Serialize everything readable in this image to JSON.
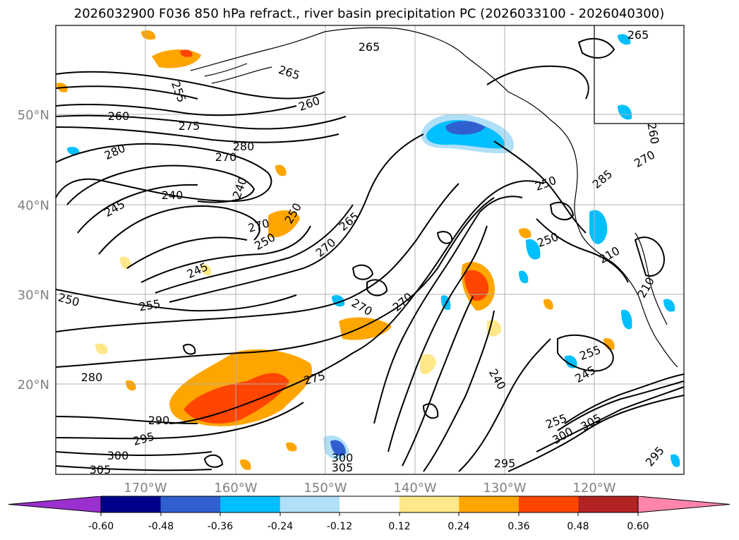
{
  "title": "2026032900 F036 850 hPa refract., river basin precipitation PC (2026033100 - 2026040300)",
  "lat_labels": [
    "50°N",
    "40°N",
    "30°N",
    "20°N"
  ],
  "lon_labels": [
    "170°W",
    "160°W",
    "150°W",
    "140°W",
    "130°W",
    "120°W"
  ],
  "contour_labels": [
    "265",
    "265",
    "255",
    "260",
    "260",
    "275",
    "280",
    "280",
    "270",
    "240",
    "240",
    "245",
    "270",
    "250",
    "250",
    "265",
    "270",
    "245",
    "250",
    "255",
    "270",
    "270",
    "280",
    "275",
    "290",
    "295",
    "300",
    "305",
    "305",
    "300",
    "250",
    "250",
    "210",
    "265",
    "270",
    "260",
    "240",
    "255",
    "245",
    "300",
    "305",
    "255",
    "295",
    "295",
    "285",
    "210"
  ],
  "colorbar": {
    "ticks": [
      "-0.60",
      "-0.48",
      "-0.36",
      "-0.24",
      "-0.12",
      "0.12",
      "0.24",
      "0.36",
      "0.48",
      "0.60"
    ],
    "colors": [
      "#9b30d0",
      "#00008b",
      "#3060d0",
      "#00bfff",
      "#b0e0f8",
      "#ffffff",
      "#ffe88a",
      "#ffa500",
      "#ff4500",
      "#b22222",
      "#ff85aa"
    ]
  },
  "chart_data": {
    "type": "contour-map",
    "title": "2026032900 F036 850 hPa refract., river basin precipitation PC (2026033100 - 2026040300)",
    "lat_range": [
      "10°N",
      "59°N"
    ],
    "lon_range": [
      "180°W",
      "110°W"
    ],
    "field_contours": "850 hPa refractivity",
    "field_shaded": "river basin precipitation PC",
    "levels": [
      -0.6,
      -0.48,
      -0.36,
      -0.24,
      -0.12,
      0.12,
      0.24,
      0.36,
      0.48,
      0.6
    ]
  }
}
